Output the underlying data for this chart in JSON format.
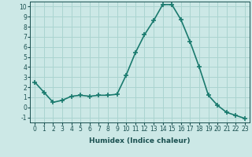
{
  "x": [
    0,
    1,
    2,
    3,
    4,
    5,
    6,
    7,
    8,
    9,
    10,
    11,
    12,
    13,
    14,
    15,
    16,
    17,
    18,
    19,
    20,
    21,
    22,
    23
  ],
  "y": [
    2.5,
    1.5,
    0.5,
    0.7,
    1.1,
    1.2,
    1.1,
    1.2,
    1.2,
    1.3,
    3.2,
    5.4,
    7.2,
    8.6,
    10.2,
    10.2,
    8.7,
    6.5,
    4.0,
    1.2,
    0.2,
    -0.5,
    -0.8,
    -1.1
  ],
  "line_color": "#1a7a6e",
  "bg_color": "#cce8e6",
  "grid_color": "#aad4d0",
  "xlabel": "Humidex (Indice chaleur)",
  "xlim": [
    -0.5,
    23.5
  ],
  "ylim": [
    -1.5,
    10.5
  ],
  "yticks": [
    -1,
    0,
    1,
    2,
    3,
    4,
    5,
    6,
    7,
    8,
    9,
    10
  ],
  "xticks": [
    0,
    1,
    2,
    3,
    4,
    5,
    6,
    7,
    8,
    9,
    10,
    11,
    12,
    13,
    14,
    15,
    16,
    17,
    18,
    19,
    20,
    21,
    22,
    23
  ],
  "marker": "+",
  "linewidth": 1.2,
  "markersize": 4,
  "markeredgewidth": 1.2,
  "font_color": "#1a5050",
  "tick_fontsize": 5.5,
  "xlabel_fontsize": 6.5
}
